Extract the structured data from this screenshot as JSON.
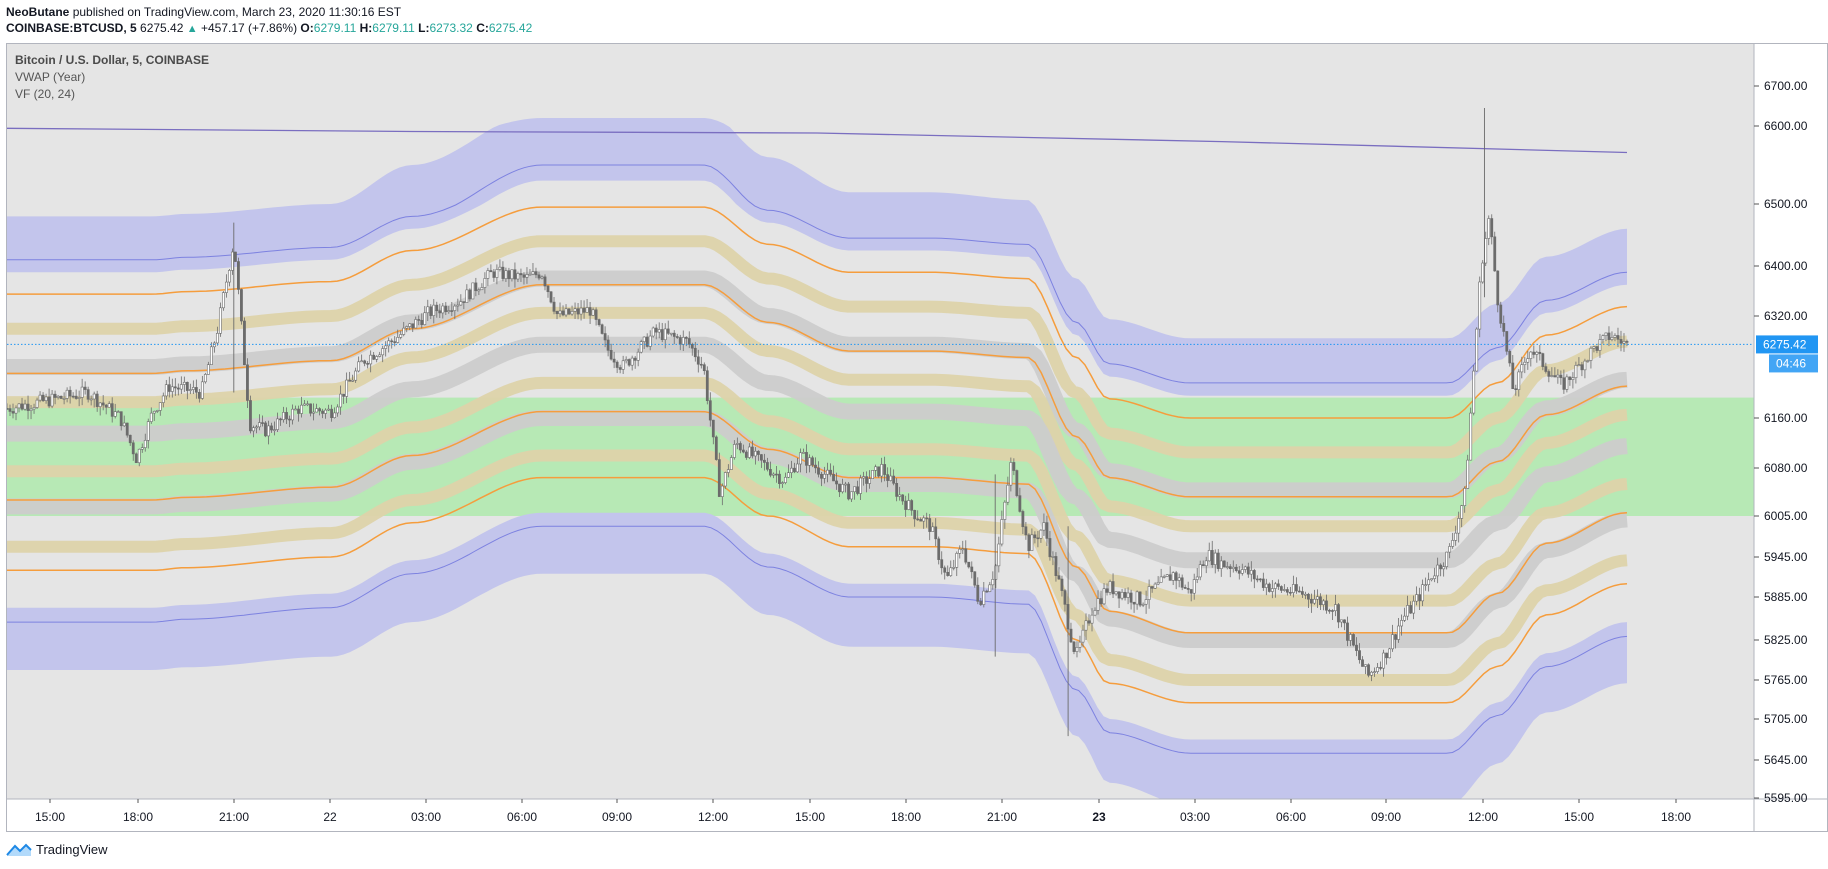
{
  "header": {
    "author": "NeoButane",
    "published_text": "published on TradingView.com, March 23, 2020 11:30:16 EST",
    "symbol": "COINBASE:BTCUSD, 5",
    "last": "6275.42",
    "change": "+457.17 (+7.86%)",
    "o_label": "O:",
    "o": "6279.11",
    "h_label": "H:",
    "h": "6279.11",
    "l_label": "L:",
    "l": "6273.32",
    "c_label": "C:",
    "c": "6275.42"
  },
  "legend": {
    "title": "Bitcoin / U.S. Dollar, 5, COINBASE",
    "ind1": "VWAP (Year)",
    "ind2": "VF (20, 24)"
  },
  "footer": {
    "brand": "TradingView"
  },
  "colors": {
    "plot_bg": "#e5e5e5",
    "band_outer": "#c3c5ec",
    "band_tan": "#ddd3aa",
    "band_gray": "#cccccc",
    "orange": "#f59d3d",
    "green_zone": "#b7e9b5",
    "vwap": "#7a6ec0",
    "price_label": "#2196f3",
    "candles": "#555555"
  },
  "chart_data": {
    "type": "candlestick",
    "symbol": "COINBASE:BTCUSD",
    "interval": "5",
    "y_ticks": [
      6700.0,
      6600.0,
      6500.0,
      6400.0,
      6320.0,
      6160.0,
      6080.0,
      6005.0,
      5945.0,
      5885.0,
      5825.0,
      5765.0,
      5705.0,
      5645.0,
      5595.0
    ],
    "x_ticks": [
      {
        "label": "15:00",
        "bold": false
      },
      {
        "label": "18:00",
        "bold": false
      },
      {
        "label": "21:00",
        "bold": false
      },
      {
        "label": "22",
        "bold": false
      },
      {
        "label": "03:00",
        "bold": false
      },
      {
        "label": "06:00",
        "bold": false
      },
      {
        "label": "09:00",
        "bold": false
      },
      {
        "label": "12:00",
        "bold": false
      },
      {
        "label": "15:00",
        "bold": false
      },
      {
        "label": "18:00",
        "bold": false
      },
      {
        "label": "21:00",
        "bold": false
      },
      {
        "label": "23",
        "bold": true
      },
      {
        "label": "03:00",
        "bold": false
      },
      {
        "label": "06:00",
        "bold": false
      },
      {
        "label": "09:00",
        "bold": false
      },
      {
        "label": "12:00",
        "bold": false
      },
      {
        "label": "15:00",
        "bold": false
      },
      {
        "label": "18:00",
        "bold": false
      }
    ],
    "last_price_label": "6275.42",
    "countdown_label": "04:46",
    "green_zone": [
      6005,
      6192
    ],
    "vwap_line": [
      [
        0,
        6597
      ],
      [
        0.25,
        6593
      ],
      [
        0.5,
        6591
      ],
      [
        0.75,
        6580
      ],
      [
        1,
        6566
      ]
    ],
    "price_path": [
      [
        0.0,
        6175
      ],
      [
        0.03,
        6190
      ],
      [
        0.05,
        6200
      ],
      [
        0.07,
        6160
      ],
      [
        0.08,
        6095
      ],
      [
        0.09,
        6170
      ],
      [
        0.1,
        6210
      ],
      [
        0.12,
        6200
      ],
      [
        0.13,
        6300
      ],
      [
        0.14,
        6440
      ],
      [
        0.15,
        6150
      ],
      [
        0.16,
        6140
      ],
      [
        0.18,
        6175
      ],
      [
        0.2,
        6170
      ],
      [
        0.22,
        6250
      ],
      [
        0.24,
        6285
      ],
      [
        0.26,
        6325
      ],
      [
        0.28,
        6345
      ],
      [
        0.3,
        6390
      ],
      [
        0.32,
        6380
      ],
      [
        0.33,
        6390
      ],
      [
        0.34,
        6320
      ],
      [
        0.36,
        6330
      ],
      [
        0.37,
        6270
      ],
      [
        0.38,
        6240
      ],
      [
        0.4,
        6295
      ],
      [
        0.42,
        6280
      ],
      [
        0.43,
        6240
      ],
      [
        0.44,
        6040
      ],
      [
        0.45,
        6120
      ],
      [
        0.46,
        6100
      ],
      [
        0.48,
        6060
      ],
      [
        0.49,
        6100
      ],
      [
        0.5,
        6080
      ],
      [
        0.52,
        6040
      ],
      [
        0.54,
        6080
      ],
      [
        0.55,
        6040
      ],
      [
        0.56,
        6010
      ],
      [
        0.57,
        5990
      ],
      [
        0.58,
        5910
      ],
      [
        0.59,
        5960
      ],
      [
        0.6,
        5880
      ],
      [
        0.61,
        5925
      ],
      [
        0.62,
        6090
      ],
      [
        0.63,
        5960
      ],
      [
        0.64,
        5990
      ],
      [
        0.65,
        5900
      ],
      [
        0.66,
        5800
      ],
      [
        0.67,
        5870
      ],
      [
        0.68,
        5900
      ],
      [
        0.7,
        5880
      ],
      [
        0.72,
        5920
      ],
      [
        0.73,
        5890
      ],
      [
        0.74,
        5950
      ],
      [
        0.75,
        5935
      ],
      [
        0.76,
        5930
      ],
      [
        0.78,
        5900
      ],
      [
        0.8,
        5890
      ],
      [
        0.82,
        5870
      ],
      [
        0.83,
        5820
      ],
      [
        0.84,
        5770
      ],
      [
        0.85,
        5800
      ],
      [
        0.86,
        5850
      ],
      [
        0.87,
        5880
      ],
      [
        0.88,
        5920
      ],
      [
        0.89,
        5950
      ],
      [
        0.9,
        6040
      ],
      [
        0.905,
        6220
      ],
      [
        0.91,
        6400
      ],
      [
        0.915,
        6480
      ],
      [
        0.92,
        6350
      ],
      [
        0.93,
        6200
      ],
      [
        0.94,
        6270
      ],
      [
        0.95,
        6240
      ],
      [
        0.96,
        6210
      ],
      [
        0.97,
        6240
      ],
      [
        0.98,
        6270
      ],
      [
        0.99,
        6290
      ],
      [
        1.0,
        6275
      ]
    ],
    "vf_bands": {
      "time": [
        0,
        0.09,
        0.11,
        0.2,
        0.25,
        0.33,
        0.43,
        0.47,
        0.52,
        0.57,
        0.63,
        0.66,
        0.68,
        0.73,
        0.89,
        0.92,
        0.95,
        1.0
      ],
      "center": [
        6130,
        6130,
        6134,
        6150,
        6200,
        6270,
        6270,
        6210,
        6165,
        6165,
        6155,
        6030,
        5965,
        5935,
        5935,
        5990,
        6065,
        6110
      ],
      "offsets": {
        "outer": 350,
        "orange2": 225,
        "tan2": 170,
        "gray2": 110,
        "orange1": 100,
        "tan1": 55,
        "gray1": 0
      },
      "weights": {
        "outer": 0.9,
        "tan": 1.0,
        "gray": 1.0
      }
    }
  }
}
